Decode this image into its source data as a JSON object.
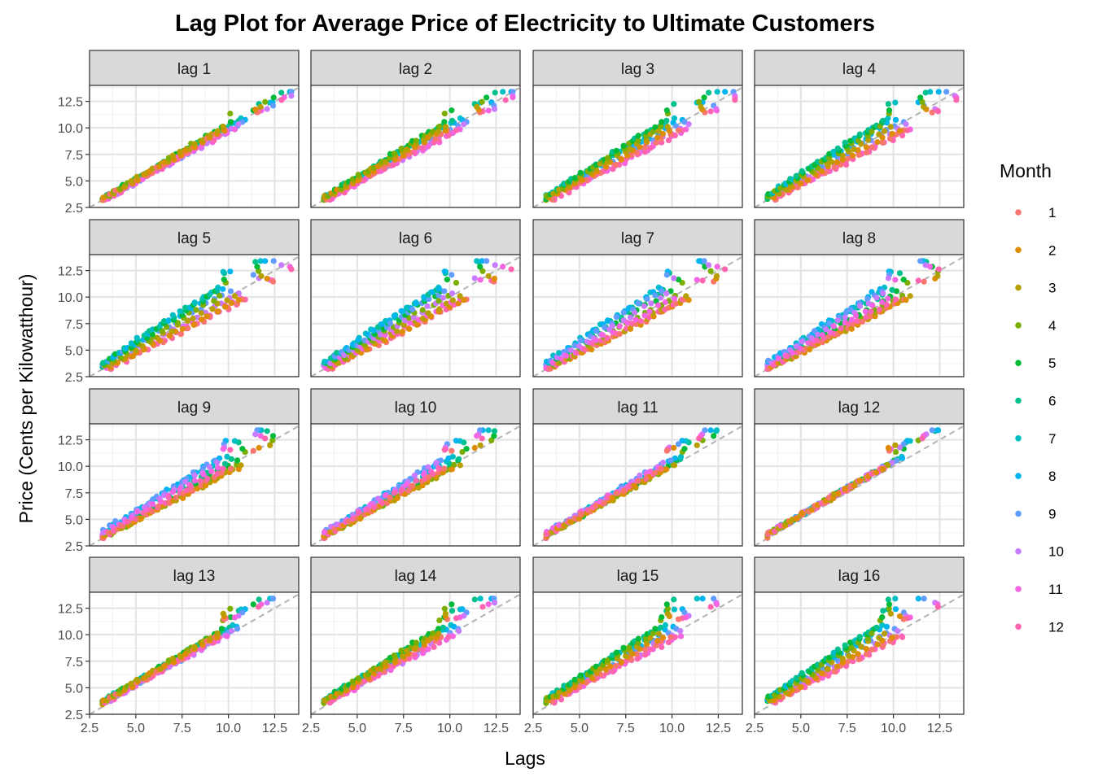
{
  "chart_data": {
    "type": "scatter",
    "title": "Lag Plot for Average Price of Electricity to Ultimate Customers",
    "xlabel": "Lags",
    "ylabel": "Price (Cents per Kilowatthour)",
    "xlim": [
      2.5,
      13.8
    ],
    "ylim": [
      2.5,
      14.0
    ],
    "x_ticks": [
      "2.5",
      "5.0",
      "7.5",
      "10.0",
      "12.5"
    ],
    "y_ticks": [
      "2.5",
      "5.0",
      "7.5",
      "10.0",
      "12.5"
    ],
    "grid": true,
    "reference_line": "y = x (dashed grey)",
    "legend": {
      "title": "Month",
      "placement": "right",
      "entries": [
        {
          "label": "1",
          "color": "#F8766D"
        },
        {
          "label": "2",
          "color": "#DE8C00"
        },
        {
          "label": "3",
          "color": "#B79F00"
        },
        {
          "label": "4",
          "color": "#7CAE00"
        },
        {
          "label": "5",
          "color": "#00BA38"
        },
        {
          "label": "6",
          "color": "#00C08B"
        },
        {
          "label": "7",
          "color": "#00BFC4"
        },
        {
          "label": "8",
          "color": "#00B4F0"
        },
        {
          "label": "9",
          "color": "#619CFF"
        },
        {
          "label": "10",
          "color": "#C77CFF"
        },
        {
          "label": "11",
          "color": "#F564E3"
        },
        {
          "label": "12",
          "color": "#FF64B0"
        }
      ]
    },
    "panels": [
      {
        "label": "lag 1",
        "lag": 1
      },
      {
        "label": "lag 2",
        "lag": 2
      },
      {
        "label": "lag 3",
        "lag": 3
      },
      {
        "label": "lag 4",
        "lag": 4
      },
      {
        "label": "lag 5",
        "lag": 5
      },
      {
        "label": "lag 6",
        "lag": 6
      },
      {
        "label": "lag 7",
        "lag": 7
      },
      {
        "label": "lag 8",
        "lag": 8
      },
      {
        "label": "lag 9",
        "lag": 9
      },
      {
        "label": "lag 10",
        "lag": 10
      },
      {
        "label": "lag 11",
        "lag": 11
      },
      {
        "label": "lag 12",
        "lag": 12
      },
      {
        "label": "lag 13",
        "lag": 13
      },
      {
        "label": "lag 14",
        "lag": 14
      },
      {
        "label": "lag 15",
        "lag": 15
      },
      {
        "label": "lag 16",
        "lag": 16
      }
    ],
    "series_description": "monthly price series approx. 3.2 to 13.4 cents/kWh; each point plots price (y) against price lagged k months (x), coloured by month",
    "price_range": [
      3.2,
      13.4
    ]
  }
}
